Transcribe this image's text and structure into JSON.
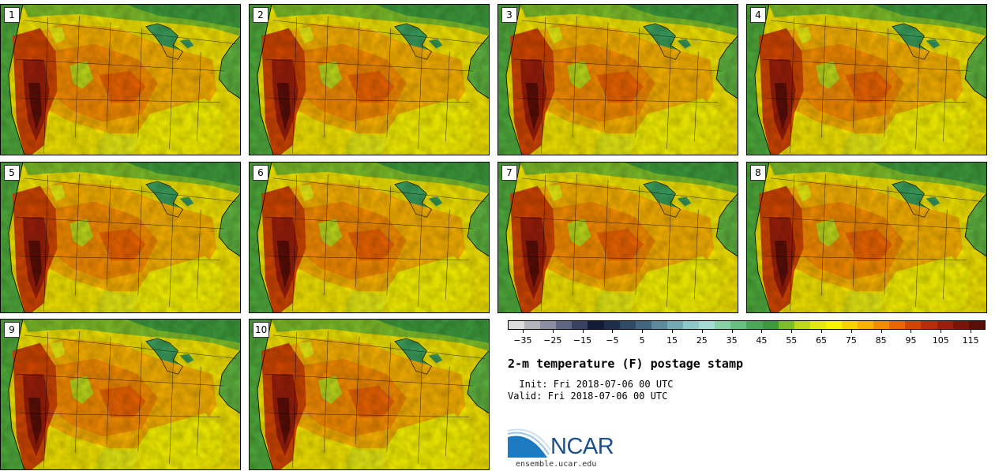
{
  "panels": [
    {
      "label": "1"
    },
    {
      "label": "2"
    },
    {
      "label": "3"
    },
    {
      "label": "4"
    },
    {
      "label": "5"
    },
    {
      "label": "6"
    },
    {
      "label": "7"
    },
    {
      "label": "8"
    },
    {
      "label": "9"
    },
    {
      "label": "10"
    }
  ],
  "colorbar": {
    "colors": [
      "#dcdcdc",
      "#b4b4bc",
      "#8a8ea0",
      "#5e6682",
      "#364260",
      "#121c36",
      "#1e2e48",
      "#2e4a64",
      "#426680",
      "#5a8a9c",
      "#72aab4",
      "#8cc8c8",
      "#a2dcd4",
      "#86d2a4",
      "#68c080",
      "#4aa858",
      "#3c9a3c",
      "#7cbe2a",
      "#bcd81a",
      "#e4e812",
      "#f6f200",
      "#f8d200",
      "#f8b200",
      "#f48c00",
      "#ea6400",
      "#d04600",
      "#b82e0a",
      "#9a1e0a",
      "#7a1408",
      "#5a0e06"
    ],
    "tick_labels": [
      "−35",
      "−25",
      "−15",
      "−5",
      "5",
      "15",
      "25",
      "35",
      "45",
      "55",
      "65",
      "75",
      "85",
      "95",
      "105",
      "115"
    ],
    "min": -40,
    "max": 120
  },
  "title": "2-m temperature (F) postage stamp",
  "init": "  Init: Fri 2018-07-06 00 UTC",
  "valid": "Valid: Fri 2018-07-06 00 UTC",
  "logo": {
    "text": "NCAR",
    "brand_color": "#1a4f8c",
    "swoosh_color": "#1e7ac0"
  },
  "site": "ensemble.ucar.edu"
}
